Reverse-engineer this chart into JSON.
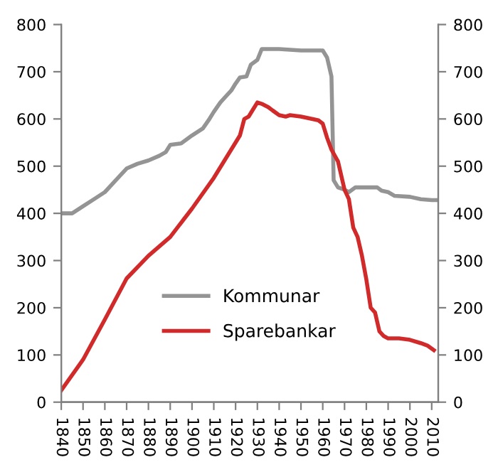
{
  "chart_data": {
    "type": "line",
    "xlim": [
      1840,
      2013
    ],
    "xticks": [
      1840,
      1850,
      1860,
      1870,
      1880,
      1890,
      1900,
      1910,
      1920,
      1930,
      1940,
      1950,
      1960,
      1970,
      1980,
      1990,
      2000,
      2010
    ],
    "ylim": [
      0,
      800
    ],
    "yticks": [
      0,
      100,
      200,
      300,
      400,
      500,
      600,
      700,
      800
    ],
    "y2lim": [
      0,
      800
    ],
    "y2ticks": [
      0,
      100,
      200,
      300,
      400,
      500,
      600,
      700,
      800
    ],
    "grid": false,
    "legend": "bottom",
    "marker": "none",
    "line_style": "solid",
    "series": [
      {
        "name": "Kommunar",
        "color": "#949494",
        "x": [
          1840,
          1845,
          1850,
          1855,
          1860,
          1865,
          1870,
          1875,
          1880,
          1885,
          1888,
          1890,
          1895,
          1900,
          1905,
          1908,
          1910,
          1913,
          1915,
          1918,
          1920,
          1922,
          1925,
          1927,
          1930,
          1932,
          1940,
          1950,
          1960,
          1962,
          1964,
          1965,
          1967,
          1970,
          1972,
          1975,
          1985,
          1987,
          1990,
          1993,
          2000,
          2005,
          2010,
          2013
        ],
        "values": [
          400,
          400,
          415,
          430,
          445,
          470,
          495,
          505,
          512,
          522,
          530,
          545,
          548,
          565,
          580,
          600,
          615,
          635,
          645,
          660,
          675,
          688,
          690,
          715,
          725,
          748,
          748,
          745,
          745,
          730,
          690,
          470,
          455,
          450,
          445,
          455,
          455,
          448,
          445,
          437,
          435,
          430,
          428,
          428
        ]
      },
      {
        "name": "Sparebankar",
        "color": "#d12a2a",
        "x": [
          1840,
          1850,
          1860,
          1870,
          1880,
          1890,
          1900,
          1910,
          1920,
          1922,
          1924,
          1926,
          1928,
          1930,
          1932,
          1935,
          1937,
          1940,
          1943,
          1945,
          1950,
          1955,
          1958,
          1960,
          1962,
          1964,
          1967,
          1970,
          1972,
          1974,
          1976,
          1978,
          1980,
          1982,
          1984,
          1986,
          1988,
          1990,
          1995,
          2000,
          2005,
          2008,
          2011
        ],
        "values": [
          25,
          90,
          175,
          262,
          310,
          350,
          410,
          475,
          550,
          565,
          600,
          605,
          620,
          635,
          632,
          625,
          618,
          608,
          605,
          608,
          605,
          600,
          597,
          590,
          560,
          535,
          510,
          450,
          430,
          370,
          350,
          310,
          260,
          200,
          190,
          150,
          140,
          135,
          135,
          132,
          125,
          120,
          110
        ]
      }
    ]
  }
}
